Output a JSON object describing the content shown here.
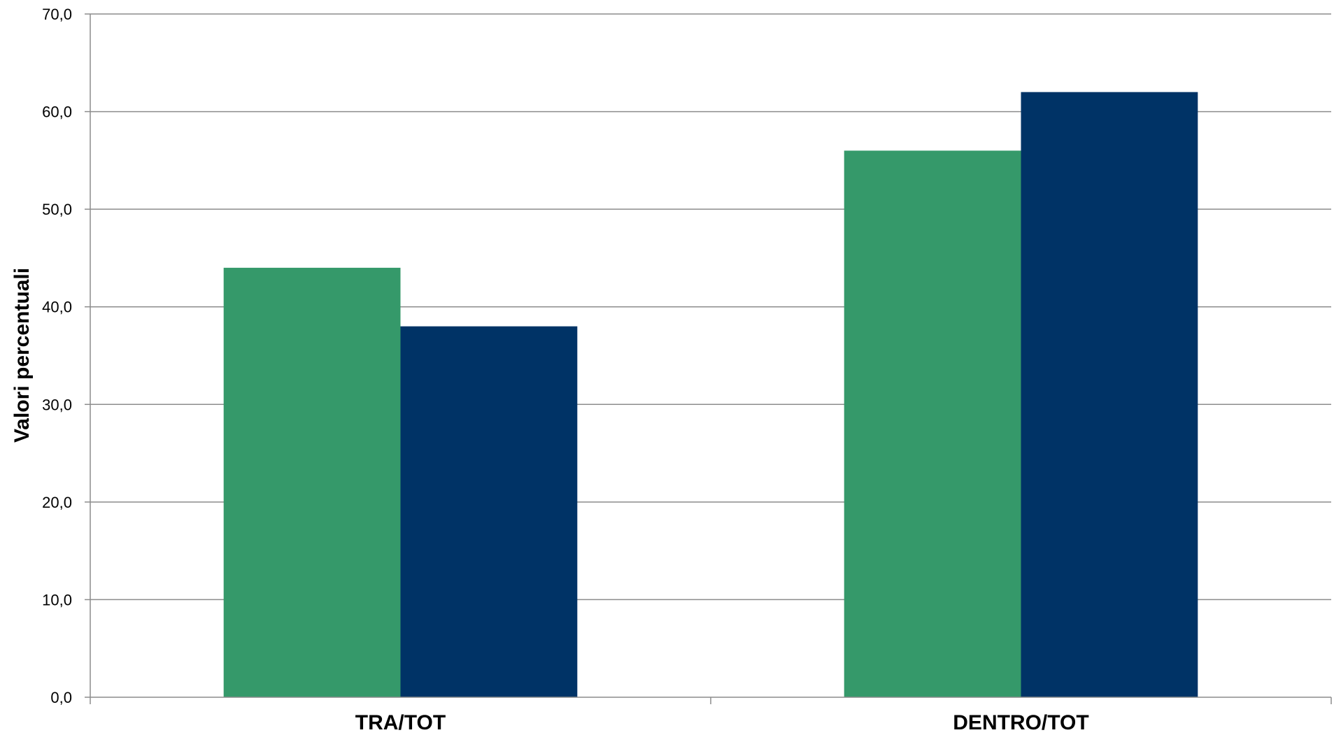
{
  "chart_data": {
    "type": "bar",
    "title": "",
    "xlabel": "",
    "ylabel": "Valori percentuali",
    "ylim": [
      0,
      70
    ],
    "ytick_step": 10,
    "ytick_labels": [
      "0,0",
      "10,0",
      "20,0",
      "30,0",
      "40,0",
      "50,0",
      "60,0",
      "70,0"
    ],
    "grid": true,
    "legend": "none",
    "categories": [
      "TRA/TOT",
      "DENTRO/TOT"
    ],
    "series": [
      {
        "values": [
          44.0,
          56.0
        ],
        "color": "#35996A"
      },
      {
        "values": [
          38.0,
          62.0
        ],
        "color": "#003366"
      }
    ],
    "colors": {
      "grid": "#8C8C8C",
      "axis": "#8C8C8C"
    }
  }
}
